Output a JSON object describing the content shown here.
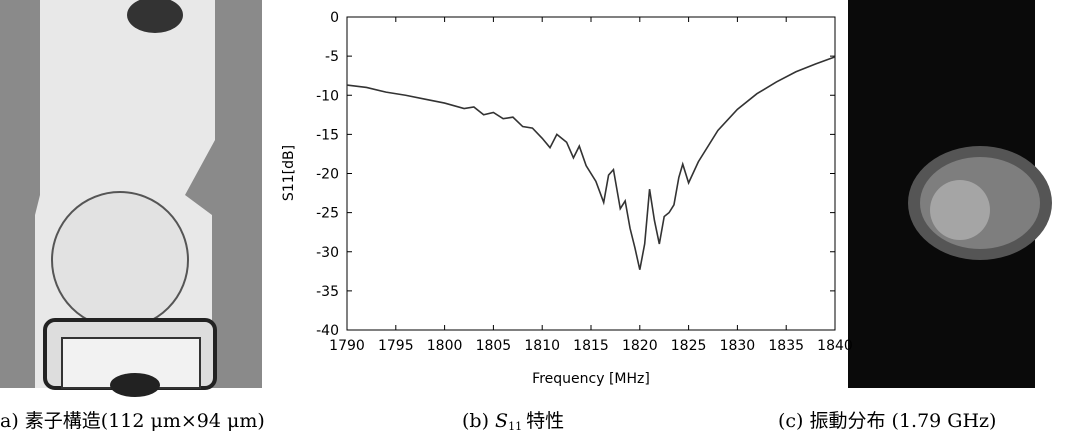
{
  "chart_data": {
    "type": "line",
    "xlabel": "Frequency [MHz]",
    "ylabel": "S11[dB]",
    "xlim": [
      1790,
      1840
    ],
    "ylim": [
      -40,
      0
    ],
    "xticks": [
      1790,
      1795,
      1800,
      1805,
      1810,
      1815,
      1820,
      1825,
      1830,
      1835,
      1840
    ],
    "yticks": [
      0,
      -5,
      -10,
      -15,
      -20,
      -25,
      -30,
      -35,
      -40
    ],
    "color": "#333333",
    "x": [
      1790,
      1792,
      1794,
      1796,
      1798,
      1800,
      1802,
      1803,
      1804,
      1805,
      1806,
      1807,
      1808,
      1809,
      1810,
      1810.8,
      1811.5,
      1812.5,
      1813.2,
      1813.8,
      1814.5,
      1815.5,
      1816.3,
      1816.8,
      1817.3,
      1818,
      1818.5,
      1819,
      1819.5,
      1820,
      1820.5,
      1821,
      1821.5,
      1822,
      1822.5,
      1823,
      1823.5,
      1824,
      1824.4,
      1825,
      1826,
      1828,
      1830,
      1832,
      1834,
      1836,
      1838,
      1840
    ],
    "values": [
      -8.7,
      -9.0,
      -9.6,
      -10.0,
      -10.5,
      -11.0,
      -11.7,
      -11.5,
      -12.5,
      -12.2,
      -13.0,
      -12.8,
      -14.0,
      -14.2,
      -15.5,
      -16.7,
      -15.0,
      -16.0,
      -18.0,
      -16.5,
      -19.0,
      -21.0,
      -23.7,
      -20.2,
      -19.5,
      -24.5,
      -23.5,
      -27.0,
      -29.5,
      -32.3,
      -29.0,
      -22.0,
      -26.0,
      -29.0,
      -25.5,
      -25.0,
      -24.0,
      -20.5,
      -18.8,
      -21.2,
      -18.5,
      -14.5,
      -11.8,
      -9.8,
      -8.3,
      -7.0,
      -6.0,
      -5.1
    ]
  },
  "captions": {
    "a": "a) 素子構造(112 μm×94 μm)",
    "b": {
      "label": "(b)",
      "symbol": "S",
      "subscript": "11",
      "text": "特性"
    },
    "c": "(c) 振動分布 (1.79 GHz)"
  }
}
